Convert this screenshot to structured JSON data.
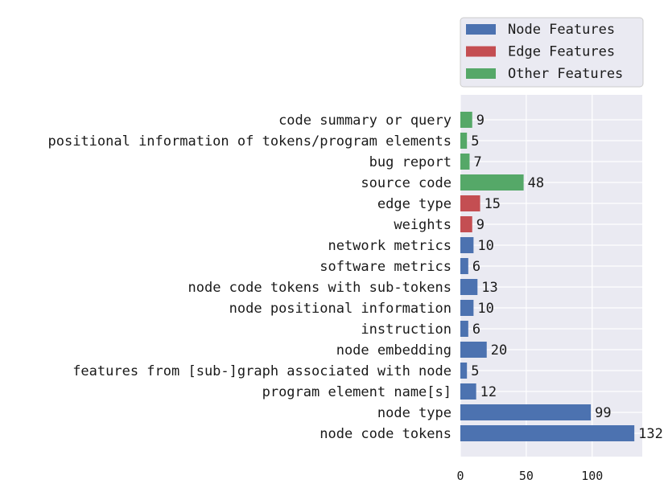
{
  "chart_data": {
    "type": "bar",
    "orientation": "horizontal",
    "title": "",
    "xlabel": "",
    "ylabel": "",
    "xlim": [
      0,
      138
    ],
    "xticks": [
      0,
      50,
      100
    ],
    "grid": true,
    "legend_position": "top-right-outside",
    "bar_labels": true,
    "colors": {
      "Node Features": "#4c72b0",
      "Edge Features": "#c44e52",
      "Other Features": "#55a868",
      "plot_background": "#eaeaf2",
      "grid": "#ffffff"
    },
    "legend": [
      "Node Features",
      "Edge Features",
      "Other Features"
    ],
    "bars": [
      {
        "label": "code summary or query",
        "value": 9,
        "group": "Other Features"
      },
      {
        "label": "positional information of tokens/program elements",
        "value": 5,
        "group": "Other Features"
      },
      {
        "label": "bug report",
        "value": 7,
        "group": "Other Features"
      },
      {
        "label": "source code",
        "value": 48,
        "group": "Other Features"
      },
      {
        "label": "edge type",
        "value": 15,
        "group": "Edge Features"
      },
      {
        "label": "weights",
        "value": 9,
        "group": "Edge Features"
      },
      {
        "label": "network metrics",
        "value": 10,
        "group": "Node Features"
      },
      {
        "label": "software metrics",
        "value": 6,
        "group": "Node Features"
      },
      {
        "label": "node code tokens with sub-tokens",
        "value": 13,
        "group": "Node Features"
      },
      {
        "label": "node positional information",
        "value": 10,
        "group": "Node Features"
      },
      {
        "label": "instruction",
        "value": 6,
        "group": "Node Features"
      },
      {
        "label": "node embedding",
        "value": 20,
        "group": "Node Features"
      },
      {
        "label": "features from [sub-]graph associated with node",
        "value": 5,
        "group": "Node Features"
      },
      {
        "label": "program element name[s]",
        "value": 12,
        "group": "Node Features"
      },
      {
        "label": "node type",
        "value": 99,
        "group": "Node Features"
      },
      {
        "label": "node code tokens",
        "value": 132,
        "group": "Node Features"
      }
    ]
  }
}
